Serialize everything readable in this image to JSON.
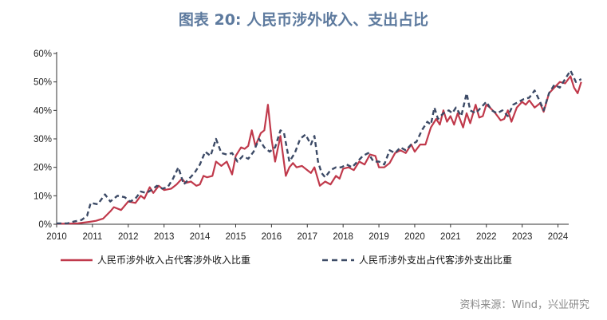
{
  "chart_data": {
    "type": "line",
    "title": "图表 20: 人民币涉外收入、支出占比",
    "xlabel": "",
    "ylabel": "",
    "xlim": [
      2010,
      2024.3
    ],
    "ylim": [
      0,
      60
    ],
    "x_ticks": [
      "2010",
      "2011",
      "2012",
      "2013",
      "2014",
      "2015",
      "2016",
      "2017",
      "2018",
      "2019",
      "2020",
      "2021",
      "2022",
      "2023",
      "2024"
    ],
    "y_ticks": [
      "0%",
      "10%",
      "20%",
      "30%",
      "40%",
      "50%",
      "60%"
    ],
    "grid": false,
    "legend_position": "bottom",
    "series": [
      {
        "name": "人民币涉外收入占代客涉外收入比重",
        "color": "#c0394b",
        "style": "solid",
        "points": [
          [
            2010.0,
            0.2
          ],
          [
            2010.3,
            0.2
          ],
          [
            2010.6,
            0.3
          ],
          [
            2010.9,
            0.8
          ],
          [
            2011.1,
            1.2
          ],
          [
            2011.3,
            2.0
          ],
          [
            2011.5,
            4.5
          ],
          [
            2011.6,
            6.0
          ],
          [
            2011.8,
            5.0
          ],
          [
            2012.0,
            8.0
          ],
          [
            2012.2,
            7.5
          ],
          [
            2012.35,
            10.0
          ],
          [
            2012.45,
            9.0
          ],
          [
            2012.6,
            13.0
          ],
          [
            2012.7,
            11.0
          ],
          [
            2012.85,
            13.5
          ],
          [
            2013.0,
            12.0
          ],
          [
            2013.2,
            12.5
          ],
          [
            2013.35,
            14.0
          ],
          [
            2013.5,
            16.0
          ],
          [
            2013.6,
            14.5
          ],
          [
            2013.75,
            15.0
          ],
          [
            2013.9,
            13.5
          ],
          [
            2014.0,
            14.0
          ],
          [
            2014.1,
            17.0
          ],
          [
            2014.2,
            16.5
          ],
          [
            2014.35,
            17.0
          ],
          [
            2014.45,
            22.0
          ],
          [
            2014.6,
            20.5
          ],
          [
            2014.75,
            22.0
          ],
          [
            2014.9,
            17.5
          ],
          [
            2015.0,
            24.0
          ],
          [
            2015.15,
            27.0
          ],
          [
            2015.25,
            26.5
          ],
          [
            2015.35,
            27.5
          ],
          [
            2015.45,
            33.0
          ],
          [
            2015.55,
            27.5
          ],
          [
            2015.7,
            32.0
          ],
          [
            2015.8,
            33.0
          ],
          [
            2015.9,
            42.0
          ],
          [
            2016.0,
            30.0
          ],
          [
            2016.1,
            22.0
          ],
          [
            2016.25,
            31.0
          ],
          [
            2016.4,
            17.0
          ],
          [
            2016.5,
            20.0
          ],
          [
            2016.6,
            21.5
          ],
          [
            2016.7,
            20.0
          ],
          [
            2016.85,
            20.5
          ],
          [
            2017.0,
            19.0
          ],
          [
            2017.1,
            18.0
          ],
          [
            2017.2,
            20.0
          ],
          [
            2017.35,
            13.5
          ],
          [
            2017.5,
            15.0
          ],
          [
            2017.65,
            14.0
          ],
          [
            2017.8,
            17.0
          ],
          [
            2017.9,
            16.0
          ],
          [
            2018.0,
            19.5
          ],
          [
            2018.15,
            20.0
          ],
          [
            2018.3,
            19.0
          ],
          [
            2018.45,
            22.0
          ],
          [
            2018.6,
            21.0
          ],
          [
            2018.75,
            24.5
          ],
          [
            2018.9,
            24.0
          ],
          [
            2019.0,
            20.0
          ],
          [
            2019.15,
            20.0
          ],
          [
            2019.3,
            21.5
          ],
          [
            2019.45,
            25.0
          ],
          [
            2019.6,
            26.0
          ],
          [
            2019.75,
            25.0
          ],
          [
            2019.9,
            28.0
          ],
          [
            2020.0,
            25.5
          ],
          [
            2020.15,
            28.0
          ],
          [
            2020.3,
            28.0
          ],
          [
            2020.45,
            34.0
          ],
          [
            2020.6,
            37.0
          ],
          [
            2020.7,
            35.0
          ],
          [
            2020.8,
            40.0
          ],
          [
            2020.9,
            36.0
          ],
          [
            2021.0,
            38.0
          ],
          [
            2021.1,
            35.0
          ],
          [
            2021.2,
            39.0
          ],
          [
            2021.35,
            34.0
          ],
          [
            2021.45,
            39.0
          ],
          [
            2021.55,
            35.5
          ],
          [
            2021.7,
            42.0
          ],
          [
            2021.8,
            37.5
          ],
          [
            2021.9,
            38.0
          ],
          [
            2022.0,
            42.0
          ],
          [
            2022.1,
            41.0
          ],
          [
            2022.25,
            39.0
          ],
          [
            2022.4,
            36.5
          ],
          [
            2022.5,
            37.0
          ],
          [
            2022.6,
            40.0
          ],
          [
            2022.7,
            36.0
          ],
          [
            2022.85,
            41.0
          ],
          [
            2023.0,
            43.0
          ],
          [
            2023.1,
            42.0
          ],
          [
            2023.2,
            43.5
          ],
          [
            2023.35,
            41.0
          ],
          [
            2023.5,
            42.5
          ],
          [
            2023.6,
            39.5
          ],
          [
            2023.75,
            46.0
          ],
          [
            2023.9,
            48.0
          ],
          [
            2024.05,
            50.0
          ],
          [
            2024.2,
            49.5
          ],
          [
            2024.35,
            52.0
          ],
          [
            2024.45,
            48.0
          ],
          [
            2024.55,
            46.0
          ],
          [
            2024.65,
            50.0
          ]
        ]
      },
      {
        "name": "人民币涉外支出占代客涉外支出比重",
        "color": "#3c4a66",
        "style": "dashed",
        "points": [
          [
            2010.0,
            0.3
          ],
          [
            2010.3,
            0.3
          ],
          [
            2010.5,
            1.0
          ],
          [
            2010.7,
            1.5
          ],
          [
            2010.85,
            3.0
          ],
          [
            2010.95,
            7.5
          ],
          [
            2011.15,
            7.0
          ],
          [
            2011.35,
            10.5
          ],
          [
            2011.5,
            8.0
          ],
          [
            2011.7,
            10.0
          ],
          [
            2011.9,
            9.5
          ],
          [
            2012.05,
            8.0
          ],
          [
            2012.2,
            9.0
          ],
          [
            2012.35,
            11.5
          ],
          [
            2012.5,
            11.0
          ],
          [
            2012.65,
            12.0
          ],
          [
            2012.8,
            13.5
          ],
          [
            2012.95,
            12.5
          ],
          [
            2013.1,
            13.0
          ],
          [
            2013.25,
            16.0
          ],
          [
            2013.4,
            20.0
          ],
          [
            2013.55,
            14.0
          ],
          [
            2013.7,
            16.0
          ],
          [
            2013.85,
            18.0
          ],
          [
            2014.0,
            21.0
          ],
          [
            2014.15,
            25.5
          ],
          [
            2014.3,
            24.0
          ],
          [
            2014.45,
            30.0
          ],
          [
            2014.6,
            25.0
          ],
          [
            2014.75,
            24.5
          ],
          [
            2014.9,
            25.0
          ],
          [
            2015.05,
            22.0
          ],
          [
            2015.2,
            24.0
          ],
          [
            2015.35,
            23.0
          ],
          [
            2015.5,
            25.5
          ],
          [
            2015.65,
            30.0
          ],
          [
            2015.8,
            27.0
          ],
          [
            2015.95,
            25.5
          ],
          [
            2016.1,
            27.0
          ],
          [
            2016.25,
            33.0
          ],
          [
            2016.35,
            32.0
          ],
          [
            2016.5,
            22.0
          ],
          [
            2016.65,
            25.0
          ],
          [
            2016.8,
            30.0
          ],
          [
            2016.95,
            31.5
          ],
          [
            2017.1,
            28.0
          ],
          [
            2017.2,
            31.0
          ],
          [
            2017.3,
            22.0
          ],
          [
            2017.4,
            18.0
          ],
          [
            2017.5,
            16.5
          ],
          [
            2017.65,
            19.0
          ],
          [
            2017.8,
            20.0
          ],
          [
            2017.95,
            20.0
          ],
          [
            2018.1,
            21.0
          ],
          [
            2018.25,
            20.0
          ],
          [
            2018.4,
            22.0
          ],
          [
            2018.55,
            24.0
          ],
          [
            2018.7,
            25.0
          ],
          [
            2018.85,
            22.0
          ],
          [
            2019.0,
            22.0
          ],
          [
            2019.15,
            21.0
          ],
          [
            2019.3,
            26.0
          ],
          [
            2019.45,
            25.0
          ],
          [
            2019.6,
            27.0
          ],
          [
            2019.75,
            26.0
          ],
          [
            2019.9,
            28.0
          ],
          [
            2020.05,
            29.0
          ],
          [
            2020.2,
            33.0
          ],
          [
            2020.35,
            36.0
          ],
          [
            2020.45,
            35.0
          ],
          [
            2020.55,
            41.0
          ],
          [
            2020.65,
            37.0
          ],
          [
            2020.8,
            39.0
          ],
          [
            2020.95,
            40.0
          ],
          [
            2021.05,
            39.0
          ],
          [
            2021.15,
            41.0
          ],
          [
            2021.3,
            38.0
          ],
          [
            2021.45,
            46.0
          ],
          [
            2021.55,
            40.0
          ],
          [
            2021.7,
            39.0
          ],
          [
            2021.85,
            41.0
          ],
          [
            2022.0,
            43.0
          ],
          [
            2022.15,
            40.0
          ],
          [
            2022.3,
            39.0
          ],
          [
            2022.45,
            40.0
          ],
          [
            2022.6,
            38.0
          ],
          [
            2022.75,
            42.0
          ],
          [
            2022.9,
            43.0
          ],
          [
            2023.05,
            44.0
          ],
          [
            2023.2,
            44.5
          ],
          [
            2023.35,
            47.0
          ],
          [
            2023.5,
            43.0
          ],
          [
            2023.6,
            40.0
          ],
          [
            2023.75,
            46.0
          ],
          [
            2023.9,
            49.0
          ],
          [
            2024.05,
            48.0
          ],
          [
            2024.2,
            51.0
          ],
          [
            2024.35,
            54.0
          ],
          [
            2024.5,
            50.0
          ],
          [
            2024.65,
            51.0
          ]
        ]
      }
    ]
  },
  "source_note": "资料来源：Wind，兴业研究"
}
